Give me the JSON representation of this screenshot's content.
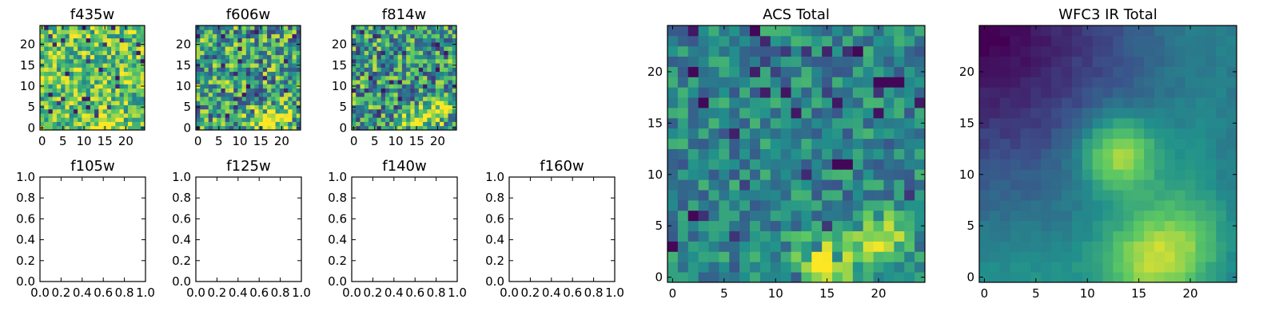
{
  "figure": {
    "background": "#ffffff",
    "colormap": "viridis",
    "colormap_stops": [
      "#440154",
      "#3b528b",
      "#21918c",
      "#5ec962",
      "#fde725"
    ]
  },
  "chart_data": [
    {
      "id": "f435w",
      "type": "heatmap",
      "title": "f435w",
      "grid": [
        25,
        25
      ],
      "xlim": [
        -0.5,
        24.5
      ],
      "ylim": [
        -0.5,
        24.5
      ],
      "xticks": [
        0,
        5,
        10,
        15,
        20
      ],
      "yticks": [
        0,
        5,
        10,
        15,
        20
      ],
      "pattern": "noise",
      "noise_level": 0.72,
      "noise_spread": 0.3,
      "bright_regions": [
        {
          "x": 15,
          "y": 0.5,
          "sigma": 2.2,
          "amp": 0.3
        }
      ]
    },
    {
      "id": "f606w",
      "type": "heatmap",
      "title": "f606w",
      "grid": [
        25,
        25
      ],
      "xlim": [
        -0.5,
        24.5
      ],
      "ylim": [
        -0.5,
        24.5
      ],
      "xticks": [
        0,
        5,
        10,
        15,
        20
      ],
      "yticks": [
        0,
        5,
        10,
        15,
        20
      ],
      "pattern": "noise",
      "noise_level": 0.58,
      "noise_spread": 0.38,
      "bright_regions": [
        {
          "x": 16,
          "y": 1,
          "sigma": 2.5,
          "amp": 0.45
        },
        {
          "x": 21,
          "y": 3,
          "sigma": 2.0,
          "amp": 0.35
        }
      ]
    },
    {
      "id": "f814w",
      "type": "heatmap",
      "title": "f814w",
      "grid": [
        25,
        25
      ],
      "xlim": [
        -0.5,
        24.5
      ],
      "ylim": [
        -0.5,
        24.5
      ],
      "xticks": [
        0,
        5,
        10,
        15,
        20
      ],
      "yticks": [
        0,
        5,
        10,
        15,
        20
      ],
      "pattern": "noise",
      "noise_level": 0.55,
      "noise_spread": 0.38,
      "bright_regions": [
        {
          "x": 15,
          "y": 1,
          "sigma": 2.2,
          "amp": 0.45
        },
        {
          "x": 20,
          "y": 4,
          "sigma": 1.8,
          "amp": 0.45
        }
      ]
    },
    {
      "id": "f105w",
      "type": "empty",
      "title": "f105w",
      "xlim": [
        0,
        1
      ],
      "ylim": [
        0,
        1
      ],
      "xticks": [
        "0.0",
        "0.2",
        "0.4",
        "0.6",
        "0.8",
        "1.0"
      ],
      "yticks": [
        "0.0",
        "0.2",
        "0.4",
        "0.6",
        "0.8",
        "1.0"
      ]
    },
    {
      "id": "f125w",
      "type": "empty",
      "title": "f125w",
      "xlim": [
        0,
        1
      ],
      "ylim": [
        0,
        1
      ],
      "xticks": [
        "0.0",
        "0.2",
        "0.4",
        "0.6",
        "0.8",
        "1.0"
      ],
      "yticks": [
        "0.0",
        "0.2",
        "0.4",
        "0.6",
        "0.8",
        "1.0"
      ]
    },
    {
      "id": "f140w",
      "type": "empty",
      "title": "f140w",
      "xlim": [
        0,
        1
      ],
      "ylim": [
        0,
        1
      ],
      "xticks": [
        "0.0",
        "0.2",
        "0.4",
        "0.6",
        "0.8",
        "1.0"
      ],
      "yticks": [
        "0.0",
        "0.2",
        "0.4",
        "0.6",
        "0.8",
        "1.0"
      ]
    },
    {
      "id": "f160w",
      "type": "empty",
      "title": "f160w",
      "xlim": [
        0,
        1
      ],
      "ylim": [
        0,
        1
      ],
      "xticks": [
        "0.0",
        "0.2",
        "0.4",
        "0.6",
        "0.8",
        "1.0"
      ],
      "yticks": [
        "0.0",
        "0.2",
        "0.4",
        "0.6",
        "0.8",
        "1.0"
      ]
    },
    {
      "id": "acs-total",
      "type": "heatmap",
      "title": "ACS Total",
      "grid": [
        25,
        25
      ],
      "xlim": [
        -0.5,
        24.5
      ],
      "ylim": [
        -0.5,
        24.5
      ],
      "xticks": [
        0,
        5,
        10,
        15,
        20
      ],
      "yticks": [
        0,
        5,
        10,
        15,
        20
      ],
      "pattern": "noise",
      "noise_level": 0.46,
      "noise_spread": 0.2,
      "bright_regions": [
        {
          "x": 15,
          "y": 1,
          "sigma": 2.0,
          "amp": 0.5
        },
        {
          "x": 20.5,
          "y": 3.5,
          "sigma": 1.8,
          "amp": 0.45
        }
      ],
      "dark_cells": [
        [
          2,
          20
        ],
        [
          8,
          24
        ],
        [
          18,
          22
        ],
        [
          20,
          19
        ],
        [
          21,
          19
        ],
        [
          22,
          19
        ],
        [
          16,
          11
        ],
        [
          17,
          11
        ],
        [
          0,
          3
        ],
        [
          2,
          6
        ],
        [
          3,
          17
        ]
      ]
    },
    {
      "id": "wfc3-ir-total",
      "type": "heatmap",
      "title": "WFC3 IR Total",
      "grid": [
        25,
        25
      ],
      "xlim": [
        -0.5,
        24.5
      ],
      "ylim": [
        -0.5,
        24.5
      ],
      "xticks": [
        0,
        5,
        10,
        15,
        20
      ],
      "yticks": [
        0,
        5,
        10,
        15,
        20
      ],
      "pattern": "smooth",
      "base_level": 0.5,
      "noise_spread": 0.06,
      "bright_regions": [
        {
          "x": 13,
          "y": 12,
          "sigma": 2.6,
          "amp": 0.5
        },
        {
          "x": 16,
          "y": 1.5,
          "sigma": 3.0,
          "amp": 0.35
        },
        {
          "x": 20,
          "y": 4,
          "sigma": 3.0,
          "amp": 0.2
        }
      ],
      "gradient": {
        "corner": "top-left",
        "amp": 0.45
      }
    }
  ]
}
